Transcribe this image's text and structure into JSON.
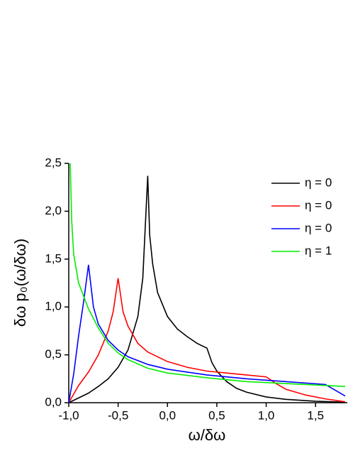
{
  "chart_data": {
    "type": "line",
    "x_label": "ω/δω",
    "y_label": "δω p₀(ω/δω)",
    "xlim": [
      -1,
      1.8
    ],
    "ylim": [
      0,
      2.5
    ],
    "xticks": [
      {
        "value": -1,
        "label": "-1,0"
      },
      {
        "value": -0.5,
        "label": "-0,5"
      },
      {
        "value": 0,
        "label": "0,0"
      },
      {
        "value": 0.5,
        "label": "0,5"
      },
      {
        "value": 1,
        "label": "1,0"
      },
      {
        "value": 1.5,
        "label": "1,5"
      }
    ],
    "yticks": [
      {
        "value": 0,
        "label": "0,0"
      },
      {
        "value": 0.5,
        "label": "0,5"
      },
      {
        "value": 1,
        "label": "1,0"
      },
      {
        "value": 1.5,
        "label": "1,5"
      },
      {
        "value": 2,
        "label": "2,0"
      },
      {
        "value": 2.5,
        "label": "2,5"
      }
    ],
    "legend": "upper right",
    "series": [
      {
        "name": "η = 0",
        "color": "#000000",
        "x": [
          -1,
          -0.9,
          -0.8,
          -0.7,
          -0.6,
          -0.5,
          -0.4,
          -0.3,
          -0.25,
          -0.2,
          -0.18,
          -0.15,
          -0.1,
          0,
          0.1,
          0.2,
          0.3,
          0.4,
          0.45,
          0.5,
          0.6,
          0.7,
          0.8,
          1,
          1.2,
          1.5,
          1.8
        ],
        "values": [
          0,
          0.05,
          0.1,
          0.17,
          0.25,
          0.37,
          0.55,
          0.9,
          1.3,
          2.37,
          1.75,
          1.45,
          1.15,
          0.9,
          0.77,
          0.69,
          0.62,
          0.57,
          0.42,
          0.33,
          0.22,
          0.15,
          0.11,
          0.06,
          0.035,
          0.015,
          0.005
        ]
      },
      {
        "name": "η = 0",
        "color": "#ff0000",
        "x": [
          -1,
          -0.9,
          -0.8,
          -0.7,
          -0.6,
          -0.55,
          -0.5,
          -0.45,
          -0.4,
          -0.3,
          -0.2,
          0,
          0.2,
          0.4,
          0.6,
          0.8,
          1,
          1.1,
          1.2,
          1.4,
          1.6,
          1.8
        ],
        "values": [
          0,
          0.18,
          0.32,
          0.5,
          0.75,
          0.95,
          1.3,
          0.95,
          0.8,
          0.62,
          0.53,
          0.43,
          0.37,
          0.33,
          0.31,
          0.29,
          0.27,
          0.2,
          0.14,
          0.08,
          0.04,
          0.01
        ]
      },
      {
        "name": "η = 0",
        "color": "#0000ff",
        "x": [
          -1,
          -0.95,
          -0.9,
          -0.85,
          -0.8,
          -0.75,
          -0.7,
          -0.6,
          -0.5,
          -0.4,
          -0.2,
          0,
          0.4,
          0.8,
          1.2,
          1.6,
          1.7,
          1.8
        ],
        "values": [
          0,
          0.3,
          0.7,
          1.05,
          1.44,
          1.0,
          0.82,
          0.65,
          0.55,
          0.48,
          0.4,
          0.35,
          0.29,
          0.25,
          0.22,
          0.19,
          0.13,
          0.07
        ]
      },
      {
        "name": "η = 1",
        "color": "#00ee00",
        "x": [
          -0.985,
          -0.97,
          -0.95,
          -0.9,
          -0.8,
          -0.7,
          -0.6,
          -0.5,
          -0.4,
          -0.2,
          0,
          0.4,
          0.8,
          1.2,
          1.8
        ],
        "values": [
          2.5,
          1.9,
          1.55,
          1.25,
          0.98,
          0.78,
          0.62,
          0.52,
          0.45,
          0.36,
          0.31,
          0.26,
          0.22,
          0.2,
          0.17
        ]
      }
    ]
  }
}
